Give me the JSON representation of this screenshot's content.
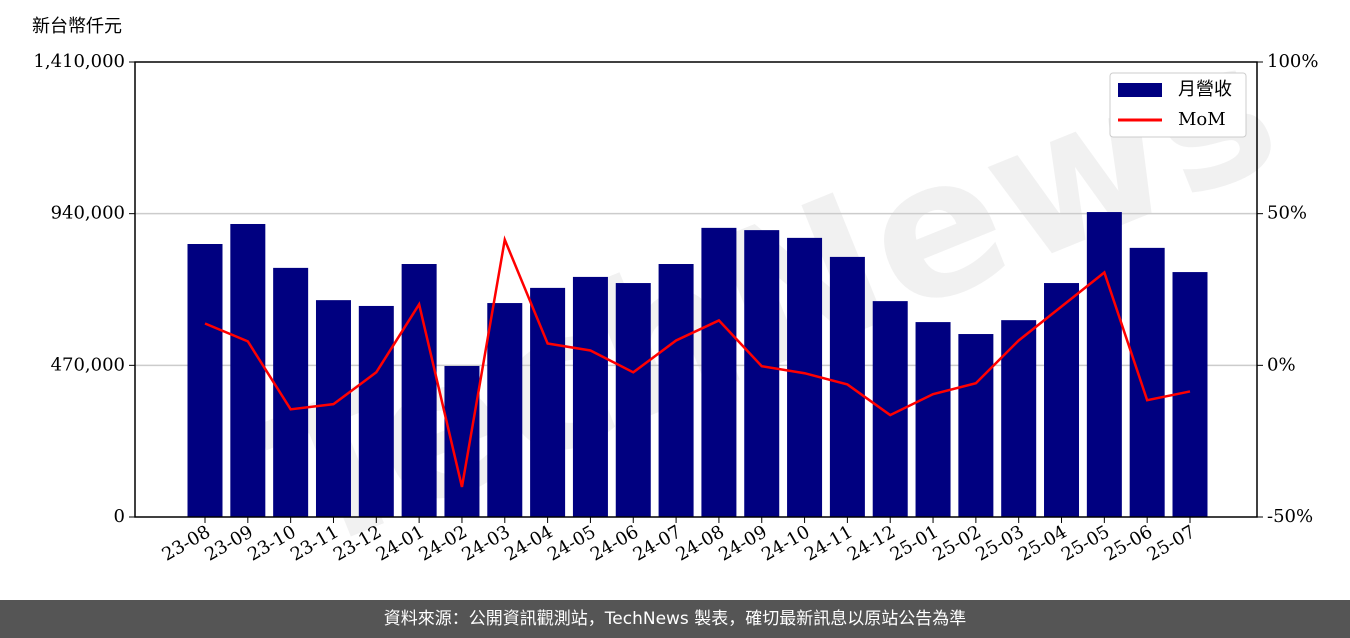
{
  "chart_data": {
    "type": "bar",
    "unit_label": "新台幣仟元",
    "watermark": "TechNews",
    "source": "資料來源：公開資訊觀測站，TechNews 製表，確切最新訊息以原站公告為準",
    "categories": [
      "23-08",
      "23-09",
      "23-10",
      "23-11",
      "23-12",
      "24-01",
      "24-02",
      "24-03",
      "24-04",
      "24-05",
      "24-06",
      "24-07",
      "24-08",
      "24-09",
      "24-10",
      "24-11",
      "24-12",
      "25-01",
      "25-02",
      "25-03",
      "25-04",
      "25-05",
      "25-06",
      "25-07"
    ],
    "series": [
      {
        "name": "月營收",
        "type": "bar",
        "color": "#000080",
        "values": [
          846000,
          908000,
          772000,
          672000,
          654000,
          784000,
          468000,
          663000,
          710000,
          744000,
          725000,
          784000,
          896000,
          889000,
          865000,
          806000,
          669000,
          604000,
          567000,
          610000,
          725000,
          945000,
          834000,
          759000
        ]
      },
      {
        "name": "MoM",
        "type": "line",
        "color": "#ff0000",
        "axis": "y2",
        "values": [
          13.8,
          7.9,
          -14.5,
          -12.8,
          -2.3,
          20.1,
          -40.1,
          41.4,
          7.2,
          4.9,
          -2.3,
          8.2,
          14.8,
          -0.3,
          -2.6,
          -6.3,
          -16.4,
          -9.5,
          -5.9,
          8.2,
          19.4,
          30.6,
          -11.5,
          -8.6
        ]
      }
    ],
    "ylim": [
      0,
      1410000
    ],
    "yticks": [
      0,
      {
        "value": 470000,
        "label": "470,000"
      },
      {
        "value": 940000,
        "label": "940,000"
      },
      {
        "value": 1410000,
        "label": "1,410,000"
      }
    ],
    "y2lim": [
      -50,
      100
    ],
    "y2ticks": [
      {
        "value": -50,
        "label": "-50%"
      },
      {
        "value": 0,
        "label": "0%"
      },
      {
        "value": 50,
        "label": "50%"
      },
      {
        "value": 100,
        "label": "100%"
      }
    ],
    "grid": true,
    "legend": "upper right"
  }
}
